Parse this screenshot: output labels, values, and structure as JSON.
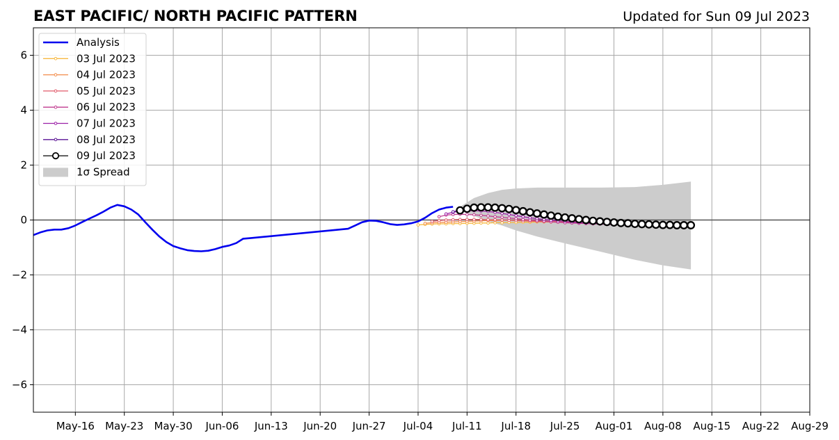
{
  "chart_data": {
    "type": "line",
    "title": "EAST PACIFIC/ NORTH PACIFIC PATTERN",
    "subtitle": "Updated for Sun 09 Jul 2023",
    "xlabel": "",
    "ylabel": "",
    "xlim": [
      "2023-05-10",
      "2023-08-29"
    ],
    "ylim": [
      -7,
      7
    ],
    "grid": true,
    "legend_position": "top-left",
    "x_ticks": [
      {
        "date": "2023-05-16",
        "label": "May-16"
      },
      {
        "date": "2023-05-23",
        "label": "May-23"
      },
      {
        "date": "2023-05-30",
        "label": "May-30"
      },
      {
        "date": "2023-06-06",
        "label": "Jun-06"
      },
      {
        "date": "2023-06-13",
        "label": "Jun-13"
      },
      {
        "date": "2023-06-20",
        "label": "Jun-20"
      },
      {
        "date": "2023-06-27",
        "label": "Jun-27"
      },
      {
        "date": "2023-07-04",
        "label": "Jul-04"
      },
      {
        "date": "2023-07-11",
        "label": "Jul-11"
      },
      {
        "date": "2023-07-18",
        "label": "Jul-18"
      },
      {
        "date": "2023-07-25",
        "label": "Jul-25"
      },
      {
        "date": "2023-08-01",
        "label": "Aug-01"
      },
      {
        "date": "2023-08-08",
        "label": "Aug-08"
      },
      {
        "date": "2023-08-15",
        "label": "Aug-15"
      },
      {
        "date": "2023-08-22",
        "label": "Aug-22"
      },
      {
        "date": "2023-08-29",
        "label": "Aug-29"
      }
    ],
    "y_ticks": [
      {
        "value": -6,
        "label": "−6"
      },
      {
        "value": -4,
        "label": "−4"
      },
      {
        "value": -2,
        "label": "−2"
      },
      {
        "value": 0,
        "label": "0"
      },
      {
        "value": 2,
        "label": "2"
      },
      {
        "value": 4,
        "label": "4"
      },
      {
        "value": 6,
        "label": "6"
      }
    ],
    "analysis": {
      "name": "Analysis",
      "color": "#0000ee",
      "x": [
        "2023-05-10",
        "2023-05-11",
        "2023-05-12",
        "2023-05-13",
        "2023-05-14",
        "2023-05-15",
        "2023-05-16",
        "2023-05-17",
        "2023-05-18",
        "2023-05-19",
        "2023-05-20",
        "2023-05-21",
        "2023-05-22",
        "2023-05-23",
        "2023-05-24",
        "2023-05-25",
        "2023-05-26",
        "2023-05-27",
        "2023-05-28",
        "2023-05-29",
        "2023-05-30",
        "2023-05-31",
        "2023-06-01",
        "2023-06-02",
        "2023-06-03",
        "2023-06-04",
        "2023-06-05",
        "2023-06-06",
        "2023-06-07",
        "2023-06-08",
        "2023-06-09",
        "2023-06-10",
        "2023-06-24",
        "2023-06-25",
        "2023-06-26",
        "2023-06-27",
        "2023-06-28",
        "2023-06-29",
        "2023-06-30",
        "2023-07-01",
        "2023-07-02",
        "2023-07-03",
        "2023-07-04",
        "2023-07-05",
        "2023-07-06",
        "2023-07-07",
        "2023-07-08",
        "2023-07-09"
      ],
      "values": [
        -0.55,
        -0.45,
        -0.38,
        -0.35,
        -0.35,
        -0.3,
        -0.2,
        -0.07,
        0.05,
        0.17,
        0.3,
        0.45,
        0.55,
        0.5,
        0.38,
        0.2,
        -0.08,
        -0.35,
        -0.6,
        -0.8,
        -0.95,
        -1.03,
        -1.1,
        -1.13,
        -1.14,
        -1.12,
        -1.06,
        -0.98,
        -0.93,
        -0.84,
        -0.68,
        -0.66,
        -0.32,
        -0.2,
        -0.08,
        -0.02,
        -0.03,
        -0.08,
        -0.15,
        -0.18,
        -0.16,
        -0.12,
        -0.05,
        0.08,
        0.25,
        0.38,
        0.45,
        0.48
      ]
    },
    "forecasts": [
      {
        "name": "03 Jul 2023",
        "color": "#f7b940",
        "start": "2023-07-04",
        "values": [
          -0.18,
          -0.16,
          -0.15,
          -0.14,
          -0.14,
          -0.13,
          -0.13,
          -0.12,
          -0.12,
          -0.11,
          -0.11,
          -0.1,
          -0.1,
          -0.09,
          -0.09,
          -0.08,
          -0.08,
          -0.07,
          -0.07,
          -0.07,
          -0.06,
          -0.06,
          -0.06,
          -0.06,
          -0.06,
          -0.07,
          -0.07,
          -0.08,
          -0.08,
          -0.09,
          -0.1,
          -0.11
        ]
      },
      {
        "name": "04 Jul 2023",
        "color": "#f28c4a",
        "start": "2023-07-05",
        "values": [
          -0.12,
          -0.1,
          -0.09,
          -0.08,
          -0.07,
          -0.06,
          -0.05,
          -0.04,
          -0.03,
          -0.02,
          -0.02,
          -0.01,
          -0.01,
          -0.01,
          -0.02,
          -0.02,
          -0.03,
          -0.04,
          -0.05,
          -0.06,
          -0.07,
          -0.08,
          -0.09,
          -0.1,
          -0.11,
          -0.12,
          -0.13,
          -0.14,
          -0.15,
          -0.16,
          -0.17,
          -0.18
        ]
      },
      {
        "name": "05 Jul 2023",
        "color": "#e05a6a",
        "start": "2023-07-06",
        "values": [
          -0.05,
          -0.02,
          0.0,
          0.01,
          0.02,
          0.02,
          0.02,
          0.02,
          0.01,
          0.01,
          0.0,
          -0.01,
          -0.02,
          -0.03,
          -0.04,
          -0.05,
          -0.06,
          -0.07,
          -0.08,
          -0.09,
          -0.1,
          -0.11,
          -0.12,
          -0.13,
          -0.14,
          -0.15,
          -0.16,
          -0.17,
          -0.18,
          -0.19,
          -0.2,
          -0.2
        ]
      },
      {
        "name": "06 Jul 2023",
        "color": "#c0398e",
        "start": "2023-07-07",
        "values": [
          0.12,
          0.18,
          0.2,
          0.21,
          0.2,
          0.19,
          0.17,
          0.15,
          0.12,
          0.1,
          0.07,
          0.05,
          0.02,
          0.0,
          -0.02,
          -0.04,
          -0.06,
          -0.08,
          -0.1,
          -0.11,
          -0.12,
          -0.13,
          -0.14,
          -0.15,
          -0.16,
          -0.17,
          -0.18,
          -0.19,
          -0.2,
          -0.21,
          -0.21,
          -0.22
        ]
      },
      {
        "name": "07 Jul 2023",
        "color": "#9b1fa6",
        "start": "2023-07-08",
        "values": [
          0.22,
          0.28,
          0.32,
          0.34,
          0.34,
          0.33,
          0.31,
          0.28,
          0.24,
          0.2,
          0.16,
          0.12,
          0.08,
          0.05,
          0.02,
          -0.01,
          -0.03,
          -0.05,
          -0.07,
          -0.09,
          -0.11,
          -0.12,
          -0.13,
          -0.14,
          -0.15,
          -0.16,
          -0.17,
          -0.18,
          -0.19,
          -0.2,
          -0.2,
          -0.21
        ]
      },
      {
        "name": "08 Jul 2023",
        "color": "#5a1294",
        "start": "2023-07-09",
        "values": [
          0.3,
          0.36,
          0.4,
          0.42,
          0.42,
          0.41,
          0.39,
          0.36,
          0.32,
          0.28,
          0.23,
          0.19,
          0.15,
          0.11,
          0.07,
          0.04,
          0.01,
          -0.02,
          -0.04,
          -0.06,
          -0.08,
          -0.1,
          -0.11,
          -0.12,
          -0.13,
          -0.14,
          -0.15,
          -0.16,
          -0.17,
          -0.17,
          -0.18,
          -0.18
        ]
      },
      {
        "name": "09 Jul 2023",
        "color": "#000000",
        "start": "2023-07-10",
        "values": [
          0.35,
          0.41,
          0.45,
          0.46,
          0.46,
          0.45,
          0.43,
          0.4,
          0.36,
          0.32,
          0.28,
          0.24,
          0.2,
          0.16,
          0.12,
          0.09,
          0.06,
          0.03,
          0.0,
          -0.03,
          -0.05,
          -0.07,
          -0.09,
          -0.11,
          -0.12,
          -0.14,
          -0.15,
          -0.16,
          -0.17,
          -0.18,
          -0.18,
          -0.19,
          -0.19,
          -0.19
        ]
      }
    ],
    "spread": {
      "name": "1σ Spread",
      "color": "#cccccc",
      "x": [
        "2023-07-10",
        "2023-07-12",
        "2023-07-14",
        "2023-07-16",
        "2023-07-18",
        "2023-07-21",
        "2023-07-25",
        "2023-07-30",
        "2023-08-04",
        "2023-08-08",
        "2023-08-12"
      ],
      "upper": [
        0.48,
        0.8,
        0.98,
        1.1,
        1.15,
        1.18,
        1.18,
        1.18,
        1.2,
        1.28,
        1.4
      ],
      "lower": [
        0.35,
        0.15,
        -0.05,
        -0.2,
        -0.38,
        -0.6,
        -0.85,
        -1.15,
        -1.45,
        -1.65,
        -1.8
      ]
    }
  }
}
